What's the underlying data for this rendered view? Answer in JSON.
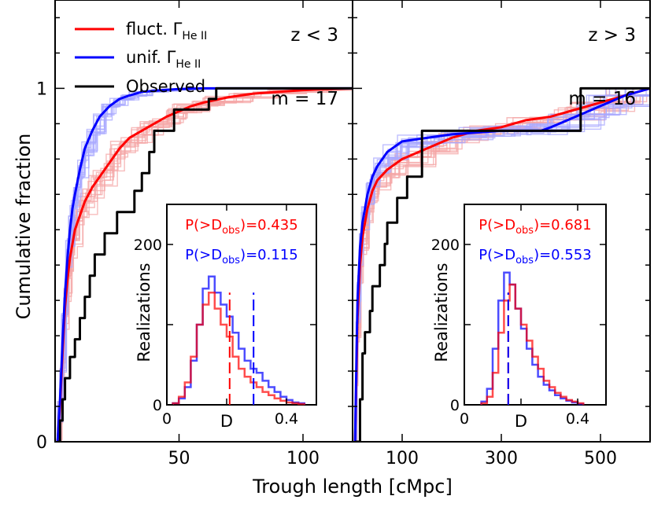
{
  "figure": {
    "ylabel": "Cumulative fraction",
    "xlabel": "Trough length [cMpc]",
    "legend": [
      {
        "label": "fluct. Γ",
        "sub": "He II",
        "color": "#ff0000"
      },
      {
        "label": "unif. Γ",
        "sub": "He II",
        "color": "#0000ff"
      },
      {
        "label": "Observed",
        "sub": "",
        "color": "#000000"
      }
    ],
    "colors": {
      "fluct": "#ff0000",
      "unif": "#0000ff",
      "obs": "#000000",
      "fluct_light": "#f4a6a6",
      "unif_light": "#a8a8ff"
    }
  },
  "chart_data": [
    {
      "type": "line",
      "panel": "z < 3",
      "label": "z < 3",
      "m_label": "m = 17",
      "xlim": [
        0,
        120
      ],
      "ylim": [
        0,
        1.25
      ],
      "xticks": [
        50,
        100
      ],
      "xtick_labels": [
        "50",
        "100"
      ],
      "yticks": [
        0,
        1
      ],
      "ytick_labels": [
        "0",
        "1"
      ],
      "series": [
        {
          "name": "fluct. Γ He II",
          "color": "#ff0000",
          "x": [
            1,
            2,
            3,
            4,
            5,
            6,
            7,
            8,
            10,
            12,
            15,
            18,
            22,
            26,
            30,
            35,
            40,
            45,
            50,
            55,
            60,
            70,
            80,
            90,
            100,
            120
          ],
          "y": [
            0,
            0.1,
            0.25,
            0.38,
            0.46,
            0.52,
            0.56,
            0.6,
            0.64,
            0.68,
            0.72,
            0.75,
            0.79,
            0.83,
            0.86,
            0.88,
            0.9,
            0.92,
            0.935,
            0.95,
            0.96,
            0.975,
            0.985,
            0.99,
            0.995,
            1.0
          ]
        },
        {
          "name": "unif. Γ He II",
          "color": "#0000ff",
          "x": [
            1,
            2,
            3,
            4,
            5,
            6,
            7,
            8,
            10,
            12,
            15,
            18,
            22,
            26,
            30,
            35,
            40,
            45,
            50,
            60,
            70,
            80,
            100,
            120
          ],
          "y": [
            0,
            0.12,
            0.28,
            0.42,
            0.52,
            0.6,
            0.66,
            0.7,
            0.77,
            0.83,
            0.88,
            0.92,
            0.95,
            0.97,
            0.98,
            0.99,
            0.993,
            0.996,
            0.998,
            1.0,
            1.0,
            1.0,
            1.0,
            1.0
          ]
        },
        {
          "name": "Observed",
          "color": "#000000",
          "step": true,
          "x": [
            1,
            2,
            3,
            4,
            6,
            8,
            10,
            12,
            14,
            16,
            20,
            25,
            30,
            32,
            35,
            38,
            40,
            45,
            48,
            60,
            62,
            62.5,
            65,
            66,
            120
          ],
          "y": [
            0,
            0.06,
            0.12,
            0.18,
            0.24,
            0.29,
            0.35,
            0.41,
            0.47,
            0.53,
            0.59,
            0.65,
            0.65,
            0.71,
            0.76,
            0.82,
            0.88,
            0.88,
            0.94,
            0.94,
            0.97,
            0.97,
            1.0,
            1.0,
            1.0
          ]
        }
      ],
      "inset": {
        "p_fluct": "P(>D",
        "p_fluct_sub": "obs",
        "p_fluct_val": ")=0.435",
        "p_unif": "P(>D",
        "p_unif_sub": "obs",
        "p_unif_val": ")=0.115",
        "ylabel": "Realizations",
        "xlabel": "D",
        "xlim": [
          0,
          0.5
        ],
        "ylim": [
          0,
          250
        ],
        "xticks": [
          0,
          0.4
        ],
        "xtick_labels": [
          "0",
          "0.4"
        ],
        "yticks": [
          0,
          200
        ],
        "ytick_labels": [
          "0",
          "200"
        ],
        "bin_edges": [
          0.02,
          0.04,
          0.06,
          0.08,
          0.1,
          0.12,
          0.14,
          0.16,
          0.18,
          0.2,
          0.22,
          0.24,
          0.26,
          0.28,
          0.3,
          0.32,
          0.34,
          0.36,
          0.38,
          0.4,
          0.42,
          0.44,
          0.46
        ],
        "hist_fluct": [
          2,
          10,
          28,
          60,
          100,
          125,
          140,
          120,
          100,
          85,
          60,
          45,
          35,
          28,
          22,
          16,
          12,
          8,
          5,
          3,
          2,
          1
        ],
        "hist_unif": [
          2,
          8,
          22,
          55,
          100,
          145,
          160,
          140,
          125,
          110,
          90,
          70,
          55,
          45,
          40,
          30,
          22,
          16,
          10,
          6,
          3,
          2
        ],
        "dobs_fluct": 0.21,
        "dobs_unif": 0.29
      }
    },
    {
      "type": "line",
      "panel": "z > 3",
      "label": "z > 3",
      "m_label": "m = 16",
      "xlim": [
        0,
        600
      ],
      "ylim": [
        0,
        1.25
      ],
      "xticks": [
        100,
        300,
        500
      ],
      "xtick_labels": [
        "100",
        "300",
        "500"
      ],
      "yticks": [],
      "ytick_labels": [],
      "series": [
        {
          "name": "fluct. Γ He II",
          "color": "#ff0000",
          "x": [
            5,
            8,
            10,
            15,
            20,
            30,
            40,
            50,
            70,
            100,
            150,
            200,
            250,
            300,
            350,
            400,
            450,
            500,
            550,
            600
          ],
          "y": [
            0,
            0.2,
            0.35,
            0.5,
            0.58,
            0.66,
            0.71,
            0.74,
            0.77,
            0.8,
            0.83,
            0.86,
            0.88,
            0.89,
            0.91,
            0.92,
            0.94,
            0.96,
            0.98,
            1.0
          ]
        },
        {
          "name": "unif. Γ He II",
          "color": "#0000ff",
          "x": [
            5,
            8,
            10,
            15,
            20,
            30,
            40,
            50,
            70,
            100,
            150,
            200,
            250,
            300,
            350,
            380,
            400,
            450,
            500,
            550,
            600
          ],
          "y": [
            0,
            0.25,
            0.4,
            0.55,
            0.62,
            0.7,
            0.75,
            0.78,
            0.82,
            0.85,
            0.86,
            0.87,
            0.875,
            0.88,
            0.88,
            0.88,
            0.89,
            0.92,
            0.95,
            0.98,
            1.0
          ]
        },
        {
          "name": "Observed",
          "color": "#000000",
          "step": true,
          "x": [
            5,
            15,
            20,
            25,
            35,
            40,
            55,
            65,
            70,
            90,
            110,
            140,
            380,
            460,
            600
          ],
          "y": [
            0,
            0.12,
            0.25,
            0.31,
            0.37,
            0.44,
            0.5,
            0.56,
            0.62,
            0.69,
            0.75,
            0.88,
            0.88,
            1.0,
            1.0
          ]
        }
      ],
      "inset": {
        "p_fluct": "P(>D",
        "p_fluct_sub": "obs",
        "p_fluct_val": ")=0.681",
        "p_unif": "P(>D",
        "p_unif_sub": "obs",
        "p_unif_val": ")=0.553",
        "ylabel": "Realizations",
        "xlabel": "D",
        "xlim": [
          0,
          0.5
        ],
        "ylim": [
          0,
          250
        ],
        "xticks": [
          0,
          0.4
        ],
        "xtick_labels": [
          "0",
          "0.4"
        ],
        "yticks": [
          0,
          200
        ],
        "ytick_labels": [
          "0",
          "200"
        ],
        "bin_edges": [
          0.06,
          0.08,
          0.1,
          0.12,
          0.14,
          0.16,
          0.18,
          0.2,
          0.22,
          0.24,
          0.26,
          0.28,
          0.3,
          0.32,
          0.34,
          0.36,
          0.38,
          0.4,
          0.42
        ],
        "hist_fluct": [
          2,
          10,
          40,
          90,
          130,
          150,
          120,
          100,
          80,
          60,
          45,
          30,
          22,
          15,
          10,
          6,
          4,
          2
        ],
        "hist_unif": [
          4,
          20,
          70,
          130,
          165,
          150,
          120,
          95,
          70,
          50,
          35,
          25,
          18,
          12,
          8,
          5,
          3,
          1
        ],
        "dobs_fluct": 0.155,
        "dobs_unif": 0.155
      }
    }
  ]
}
